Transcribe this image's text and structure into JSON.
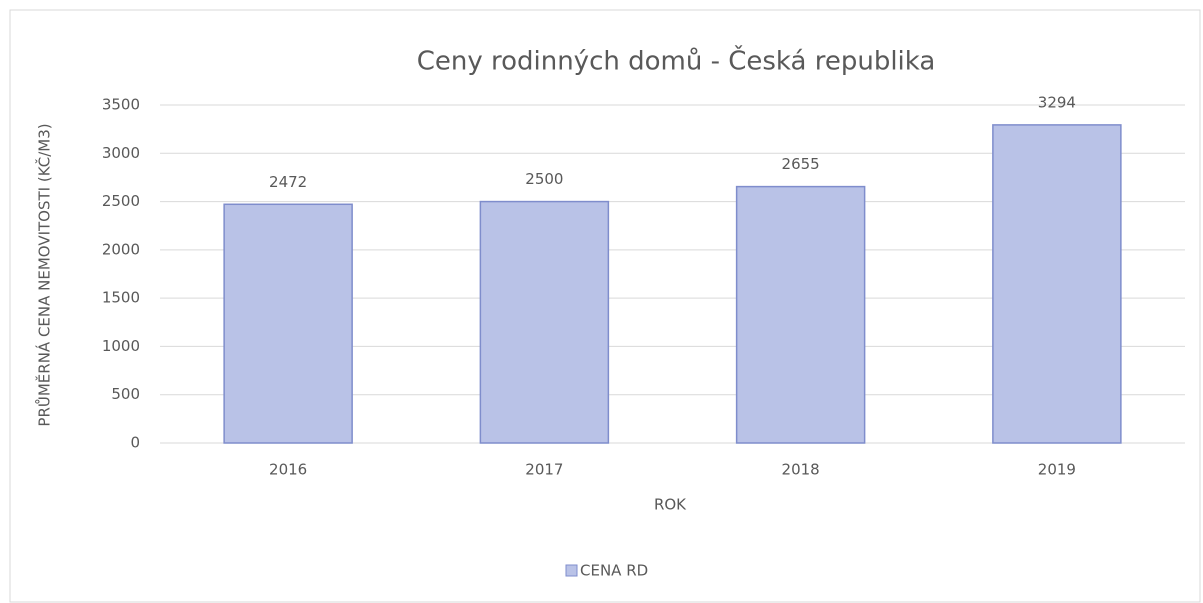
{
  "chart_data": {
    "type": "bar",
    "title": "Ceny rodinných domů - Česká republika",
    "xlabel": "ROK",
    "ylabel": "PRŮMĚRNÁ CENA NEMOVITOSTI (KČ/M3)",
    "categories": [
      "2016",
      "2017",
      "2018",
      "2019"
    ],
    "series": [
      {
        "name": "CENA RD",
        "color": "#b9c2e7",
        "edgecolor": "#7f8dcc",
        "values": [
          2472,
          2500,
          2655,
          3294
        ]
      }
    ],
    "ylim": [
      0,
      3500
    ],
    "yticks": [
      0,
      500,
      1000,
      1500,
      2000,
      2500,
      3000,
      3500
    ],
    "grid": true,
    "legend": "bottom"
  }
}
